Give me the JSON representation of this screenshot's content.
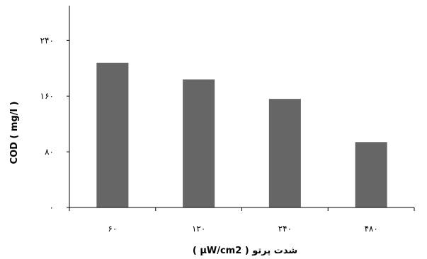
{
  "chart_data": {
    "type": "bar",
    "categories": [
      "۶۰",
      "۱۲۰",
      "۲۴۰",
      "۴۸۰"
    ],
    "values": [
      208,
      184,
      156,
      94
    ],
    "xlabel": "شدت پرتو  ( µW/cm2 )",
    "ylabel": "COD  ( mg/l )",
    "ylim": [
      0,
      290
    ],
    "yticks": [
      0,
      80,
      160,
      240
    ],
    "ytick_labels": [
      "۰",
      "۸۰",
      "۱۶۰",
      "۲۴۰"
    ],
    "grid": false,
    "legend": "none",
    "colors": {
      "bar": "#666666",
      "axis": "#000000",
      "text": "#000000"
    }
  }
}
